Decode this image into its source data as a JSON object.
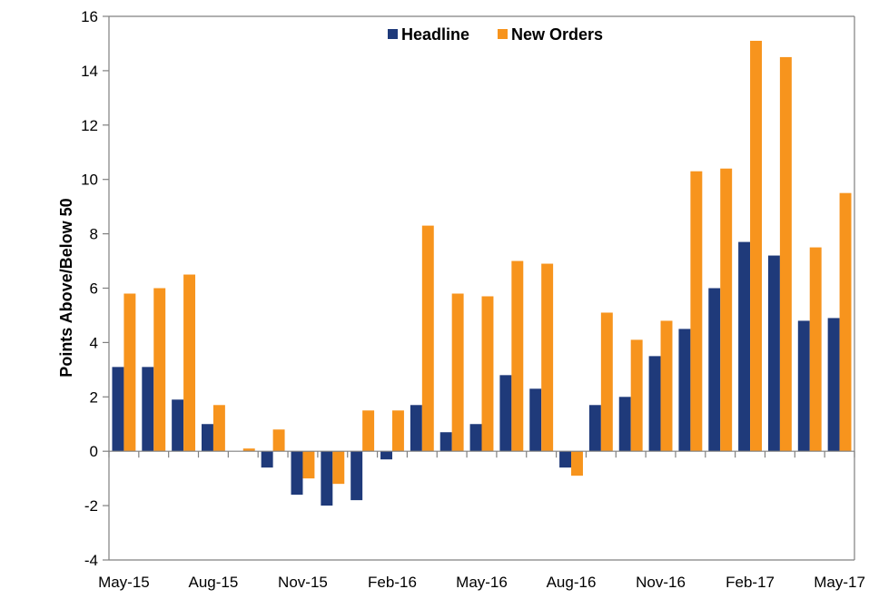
{
  "chart_data": {
    "type": "bar",
    "ylabel": "Points Above/Below 50",
    "ylim": [
      -4,
      16
    ],
    "yticks": [
      -4,
      -2,
      0,
      2,
      4,
      6,
      8,
      10,
      12,
      14,
      16
    ],
    "ytick_labels": [
      "-4",
      "-2",
      "0",
      "2",
      "4",
      "6",
      "8",
      "10",
      "12",
      "14",
      "16"
    ],
    "grid": false,
    "legend_position": "top-center",
    "categories": [
      "May-15",
      "Jun-15",
      "Jul-15",
      "Aug-15",
      "Sep-15",
      "Oct-15",
      "Nov-15",
      "Dec-15",
      "Jan-16",
      "Feb-16",
      "Mar-16",
      "Apr-16",
      "May-16",
      "Jun-16",
      "Jul-16",
      "Aug-16",
      "Sep-16",
      "Oct-16",
      "Nov-16",
      "Dec-16",
      "Jan-17",
      "Feb-17",
      "Mar-17",
      "Apr-17",
      "May-17"
    ],
    "xtick_labels": [
      {
        "index": 0,
        "label": "May-15"
      },
      {
        "index": 3,
        "label": "Aug-15"
      },
      {
        "index": 6,
        "label": "Nov-15"
      },
      {
        "index": 9,
        "label": "Feb-16"
      },
      {
        "index": 12,
        "label": "May-16"
      },
      {
        "index": 15,
        "label": "Aug-16"
      },
      {
        "index": 18,
        "label": "Nov-16"
      },
      {
        "index": 21,
        "label": "Feb-17"
      },
      {
        "index": 24,
        "label": "May-17"
      }
    ],
    "series": [
      {
        "name": "Headline",
        "color": "#1f3a7a",
        "values": [
          3.1,
          3.1,
          1.9,
          1.0,
          0.0,
          -0.6,
          -1.6,
          -2.0,
          -1.8,
          -0.3,
          1.7,
          0.7,
          1.0,
          2.8,
          2.3,
          -0.6,
          1.7,
          2.0,
          3.5,
          4.5,
          6.0,
          7.7,
          7.2,
          4.8,
          4.9
        ]
      },
      {
        "name": "New Orders",
        "color": "#f7941d",
        "values": [
          5.8,
          6.0,
          6.5,
          1.7,
          0.1,
          0.8,
          -1.0,
          -1.2,
          1.5,
          1.5,
          8.3,
          5.8,
          5.7,
          7.0,
          6.9,
          -0.9,
          5.1,
          4.1,
          4.8,
          10.3,
          10.4,
          15.1,
          14.5,
          7.5,
          9.5
        ]
      }
    ]
  }
}
